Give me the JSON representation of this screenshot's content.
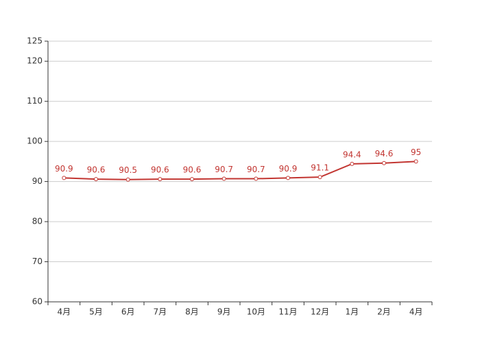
{
  "chart_data": {
    "type": "line",
    "categories": [
      "4月",
      "5月",
      "6月",
      "7月",
      "8月",
      "9月",
      "10月",
      "11月",
      "12月",
      "1月",
      "2月",
      "4月"
    ],
    "series": [
      {
        "color": "#c23531",
        "values": [
          90.9,
          90.6,
          90.5,
          90.6,
          90.6,
          90.7,
          90.7,
          90.9,
          91.1,
          94.4,
          94.6,
          95
        ]
      }
    ],
    "ylim": [
      60,
      125
    ],
    "yticks": [
      60,
      70,
      80,
      90,
      100,
      110,
      120,
      125
    ],
    "grid": true
  }
}
